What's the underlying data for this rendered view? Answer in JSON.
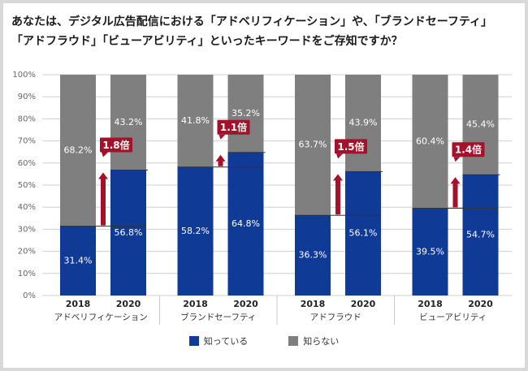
{
  "title_lines": [
    "あなたは、デジタル広告配信における「アドベリフィケーション」や、「ブランドセーフティ」",
    "「アドフラウド」「ビューアビリティ」といったキーワードをご存知ですか？"
  ],
  "colors": {
    "know": "#0f3a96",
    "dont_know": "#7f7f7f",
    "arrow": "#a3122a",
    "grid": "#d0d0d0",
    "divider": "#c9c9c9"
  },
  "chart_data": {
    "type": "bar",
    "stacked": true,
    "percent_stacked": true,
    "ylim": [
      0,
      100
    ],
    "yticks": [
      "0%",
      "10%",
      "20%",
      "30%",
      "40%",
      "50%",
      "60%",
      "70%",
      "80%",
      "90%",
      "100%"
    ],
    "grid": true,
    "legend_position": "bottom-center",
    "series_names": [
      "知っている",
      "知らない"
    ],
    "groups": [
      {
        "label": "アドベリフィケーション",
        "bars": [
          {
            "year": "2018",
            "know": 31.4,
            "dont_know": 68.2,
            "know_label": "31.4%",
            "dont_know_label": "68.2%"
          },
          {
            "year": "2020",
            "know": 56.8,
            "dont_know": 43.2,
            "know_label": "56.8%",
            "dont_know_label": "43.2%"
          }
        ],
        "ratio": "1.8倍"
      },
      {
        "label": "ブランドセーフティ",
        "bars": [
          {
            "year": "2018",
            "know": 58.2,
            "dont_know": 41.8,
            "know_label": "58.2%",
            "dont_know_label": "41.8%"
          },
          {
            "year": "2020",
            "know": 64.8,
            "dont_know": 35.2,
            "know_label": "64.8%",
            "dont_know_label": "35.2%"
          }
        ],
        "ratio": "1.1倍"
      },
      {
        "label": "アドフラウド",
        "bars": [
          {
            "year": "2018",
            "know": 36.3,
            "dont_know": 63.7,
            "know_label": "36.3%",
            "dont_know_label": "63.7%"
          },
          {
            "year": "2020",
            "know": 56.1,
            "dont_know": 43.9,
            "know_label": "56.1%",
            "dont_know_label": "43.9%"
          }
        ],
        "ratio": "1.5倍"
      },
      {
        "label": "ビューアビリティ",
        "bars": [
          {
            "year": "2018",
            "know": 39.5,
            "dont_know": 60.4,
            "know_label": "39.5%",
            "dont_know_label": "60.4%"
          },
          {
            "year": "2020",
            "know": 54.7,
            "dont_know": 45.4,
            "know_label": "54.7%",
            "dont_know_label": "45.4%"
          }
        ],
        "ratio": "1.4倍"
      }
    ]
  }
}
